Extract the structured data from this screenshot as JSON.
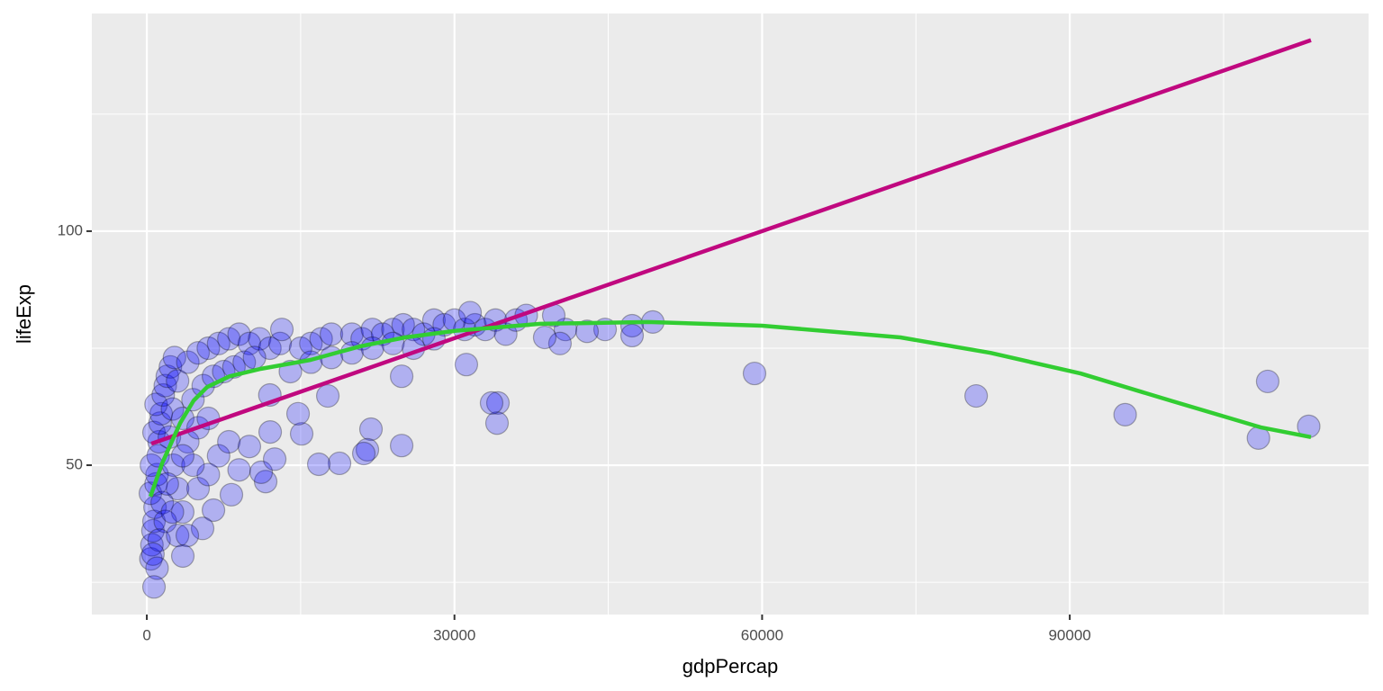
{
  "chart_data": {
    "type": "scatter",
    "x_label": "gdpPercap",
    "y_label": "lifeExp",
    "xlim": [
      -5360,
      119140
    ],
    "ylim": [
      18.1,
      146.5
    ],
    "xticks": [
      0,
      30000,
      60000,
      90000
    ],
    "yticks": [
      50,
      100
    ],
    "x_minor_ticks": [
      15000,
      45000,
      75000,
      105000
    ],
    "y_minor_ticks": [
      25,
      75,
      125
    ],
    "grid": true,
    "point_color": "#0000ff",
    "x": [
      400,
      500,
      600,
      700,
      800,
      350,
      900,
      1000,
      450,
      1100,
      1200,
      700,
      1300,
      1400,
      900,
      1600,
      1800,
      2000,
      2300,
      2700,
      3000,
      2500,
      2200,
      2600,
      3000,
      3500,
      1500,
      1800,
      1200,
      600,
      4000,
      5000,
      6000,
      7000,
      8000,
      9000,
      10000,
      11000,
      12000,
      13000,
      15000,
      16000,
      17000,
      18000,
      20000,
      21000,
      22000,
      23000,
      24000,
      25000,
      26000,
      27000,
      28000,
      29000,
      30000,
      31000,
      32000,
      33000,
      34000,
      35000,
      36000,
      37000,
      3500,
      4500,
      5500,
      6500,
      7500,
      8500,
      9500,
      10500,
      4000,
      5000,
      6000,
      7000,
      8000,
      9000,
      10000,
      12000,
      14000,
      16000,
      18000,
      20000,
      22000,
      24000,
      26000,
      28000,
      5000,
      6000,
      4500,
      3500,
      2000,
      2500,
      3000,
      1000,
      113300,
      108400,
      109300,
      95400,
      80870,
      59260,
      49340,
      47320,
      47320,
      44690,
      42930,
      40820,
      40290,
      38800,
      39680,
      34240,
      34150,
      33620,
      31160,
      31520,
      24850,
      24850,
      21860,
      21510,
      21160,
      18790,
      16770,
      17650,
      15100,
      14750,
      13170,
      11590,
      11150,
      12470,
      12030,
      8250,
      6500,
      5440,
      3950,
      3510,
      700
    ],
    "y": [
      30,
      33,
      36,
      38,
      41,
      44,
      46,
      48,
      50,
      52,
      55,
      57,
      59,
      61,
      63,
      65,
      67,
      69,
      71,
      73,
      68,
      62,
      56,
      50,
      45,
      40,
      42,
      38,
      34,
      31,
      72,
      74,
      75,
      76,
      77,
      78,
      76,
      77,
      75,
      76,
      75,
      76,
      77,
      78,
      78,
      77,
      79,
      78,
      79,
      80,
      79,
      78,
      81,
      80,
      81,
      79,
      80,
      79,
      81,
      78,
      81,
      82,
      60,
      64,
      67,
      69,
      70,
      71,
      72,
      73,
      55,
      58,
      60,
      52,
      55,
      49,
      54,
      65,
      70,
      72,
      73,
      74,
      75,
      76,
      75,
      77,
      45,
      48,
      50,
      52,
      46,
      40,
      35,
      28,
      58.3,
      55.8,
      67.9,
      60.8,
      64.8,
      69.6,
      80.6,
      79.8,
      77.7,
      79.0,
      78.6,
      79.0,
      76.0,
      77.3,
      82.0,
      63.3,
      59.0,
      63.3,
      71.5,
      82.6,
      69.0,
      54.2,
      57.7,
      53.3,
      52.5,
      50.4,
      50.2,
      64.8,
      56.7,
      61.0,
      79.0,
      46.5,
      48.5,
      51.3,
      57.1,
      43.7,
      40.4,
      36.5,
      35.0,
      30.6,
      24.0
    ],
    "lines": [
      {
        "type": "line",
        "color": "#c0087f",
        "x": [
          439,
          113520
        ],
        "y": [
          54.6,
          140.8
        ]
      },
      {
        "type": "line",
        "color": "#32cd32",
        "x": [
          351,
          1493,
          3250,
          4565,
          5882,
          8077,
          11150,
          15980,
          20810,
          25200,
          30030,
          38370,
          48900,
          60000,
          73490,
          82270,
          91050,
          99830,
          108600,
          113520
        ],
        "y": [
          43.3,
          50.4,
          59.0,
          63.8,
          66.7,
          69.0,
          70.6,
          72.5,
          75.4,
          77.3,
          78.7,
          80.2,
          80.6,
          79.8,
          77.3,
          74.0,
          69.6,
          63.8,
          58.1,
          56.0
        ]
      }
    ]
  }
}
